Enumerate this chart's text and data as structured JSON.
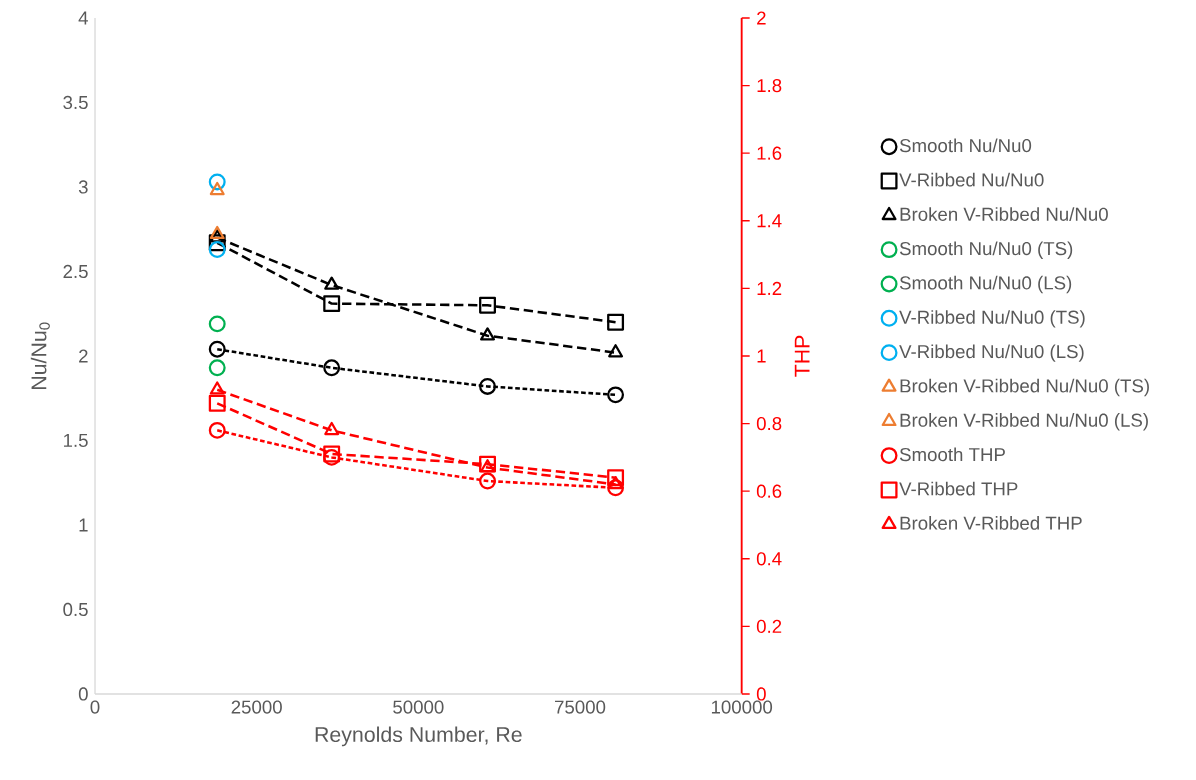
{
  "chart_data": {
    "type": "scatter",
    "xlabel": "Reynolds Number, Re",
    "ylabel": "Nu/Nu$_{0}$",
    "y2label": "THP",
    "xlim": [
      0,
      100000
    ],
    "xticks": [
      0,
      25000,
      50000,
      75000,
      100000
    ],
    "ylim": [
      0,
      4
    ],
    "yticks": [
      0,
      0.5,
      1,
      1.5,
      2,
      2.5,
      3,
      3.5,
      4
    ],
    "y2lim": [
      0,
      2
    ],
    "y2ticks": [
      0,
      0.2,
      0.4,
      0.6,
      0.8,
      1,
      1.2,
      1.4,
      1.6,
      1.8,
      2
    ],
    "legend": "right",
    "grid": false,
    "series": [
      {
        "name": "Smooth Nu/Nu0",
        "type": "line",
        "color": "#000000",
        "marker": "circle",
        "line_style": "dotted",
        "x": [
          18900,
          36600,
          60700,
          80500
        ],
        "values": [
          2.04,
          1.93,
          1.82,
          1.77
        ]
      },
      {
        "name": "V-Ribbed Nu/Nu0",
        "type": "line",
        "color": "#000000",
        "marker": "square",
        "line_style": "dashed",
        "x": [
          18900,
          36600,
          60700,
          80500
        ],
        "values": [
          2.67,
          2.31,
          2.3,
          2.2
        ]
      },
      {
        "name": "Broken V-Ribbed Nu/Nu0",
        "type": "line",
        "color": "#000000",
        "marker": "triangle",
        "line_style": "dashed",
        "x": [
          18900,
          36600,
          60700,
          80500
        ],
        "values": [
          2.7,
          2.42,
          2.12,
          2.02
        ]
      },
      {
        "name": "Smooth Nu/Nu0 (TS)",
        "color": "#00b050",
        "marker": "circle",
        "x": [
          18900
        ],
        "values": [
          2.19
        ]
      },
      {
        "name": "Smooth Nu/Nu0 (LS)",
        "color": "#00b050",
        "marker": "circle",
        "x": [
          18900
        ],
        "values": [
          1.93
        ]
      },
      {
        "name": "V-Ribbed Nu/Nu0 (TS)",
        "color": "#00b0f0",
        "marker": "circle",
        "x": [
          18900
        ],
        "values": [
          3.03
        ]
      },
      {
        "name": "V-Ribbed Nu/Nu0 (LS)",
        "color": "#00b0f0",
        "marker": "circle",
        "x": [
          18900
        ],
        "values": [
          2.63
        ]
      },
      {
        "name": "Broken V-Ribbed Nu/Nu0 (TS)",
        "color": "#ed7d31",
        "marker": "triangle",
        "x": [
          18900
        ],
        "values": [
          2.98
        ]
      },
      {
        "name": "Broken V-Ribbed Nu/Nu0 (LS)",
        "color": "#ed7d31",
        "marker": "triangle",
        "x": [
          18900
        ],
        "values": [
          2.72
        ]
      },
      {
        "name": "Smooth THP",
        "type": "line",
        "axis": "y2",
        "color": "#ff0000",
        "marker": "circle",
        "line_style": "dotted",
        "x": [
          18900,
          36600,
          60700,
          80500
        ],
        "values": [
          0.78,
          0.7,
          0.63,
          0.61
        ]
      },
      {
        "name": "V-Ribbed THP",
        "type": "line",
        "axis": "y2",
        "color": "#ff0000",
        "marker": "square",
        "line_style": "dashed",
        "x": [
          18900,
          36600,
          60700,
          80500
        ],
        "values": [
          0.86,
          0.71,
          0.68,
          0.64
        ]
      },
      {
        "name": "Broken V-Ribbed THP",
        "type": "line",
        "axis": "y2",
        "color": "#ff0000",
        "marker": "triangle",
        "line_style": "dashed",
        "x": [
          18900,
          36600,
          60700,
          80500
        ],
        "values": [
          0.9,
          0.78,
          0.67,
          0.62
        ]
      }
    ]
  }
}
